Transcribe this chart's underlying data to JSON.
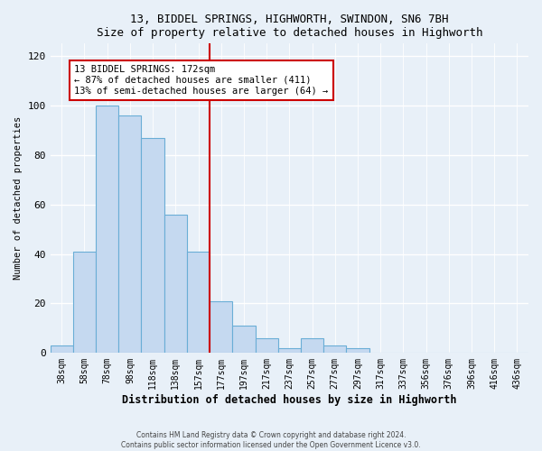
{
  "title": "13, BIDDEL SPRINGS, HIGHWORTH, SWINDON, SN6 7BH",
  "subtitle": "Size of property relative to detached houses in Highworth",
  "xlabel": "Distribution of detached houses by size in Highworth",
  "ylabel": "Number of detached properties",
  "bar_labels": [
    "38sqm",
    "58sqm",
    "78sqm",
    "98sqm",
    "118sqm",
    "138sqm",
    "157sqm",
    "177sqm",
    "197sqm",
    "217sqm",
    "237sqm",
    "257sqm",
    "277sqm",
    "297sqm",
    "317sqm",
    "337sqm",
    "356sqm",
    "376sqm",
    "396sqm",
    "416sqm",
    "436sqm"
  ],
  "bar_values": [
    3,
    41,
    100,
    96,
    87,
    56,
    41,
    21,
    11,
    6,
    2,
    6,
    3,
    2,
    0,
    0,
    0,
    0,
    0,
    0,
    0
  ],
  "bar_color": "#c5d9f0",
  "bar_edge_color": "#6aaed6",
  "ylim": [
    0,
    125
  ],
  "yticks": [
    0,
    20,
    40,
    60,
    80,
    100,
    120
  ],
  "vline_color": "#cc0000",
  "annotation_title": "13 BIDDEL SPRINGS: 172sqm",
  "annotation_line2": "← 87% of detached houses are smaller (411)",
  "annotation_line3": "13% of semi-detached houses are larger (64) →",
  "annotation_box_color": "#cc0000",
  "footer_line1": "Contains HM Land Registry data © Crown copyright and database right 2024.",
  "footer_line2": "Contains public sector information licensed under the Open Government Licence v3.0.",
  "background_color": "#e8f0f8",
  "plot_background_color": "#e8f0f8"
}
